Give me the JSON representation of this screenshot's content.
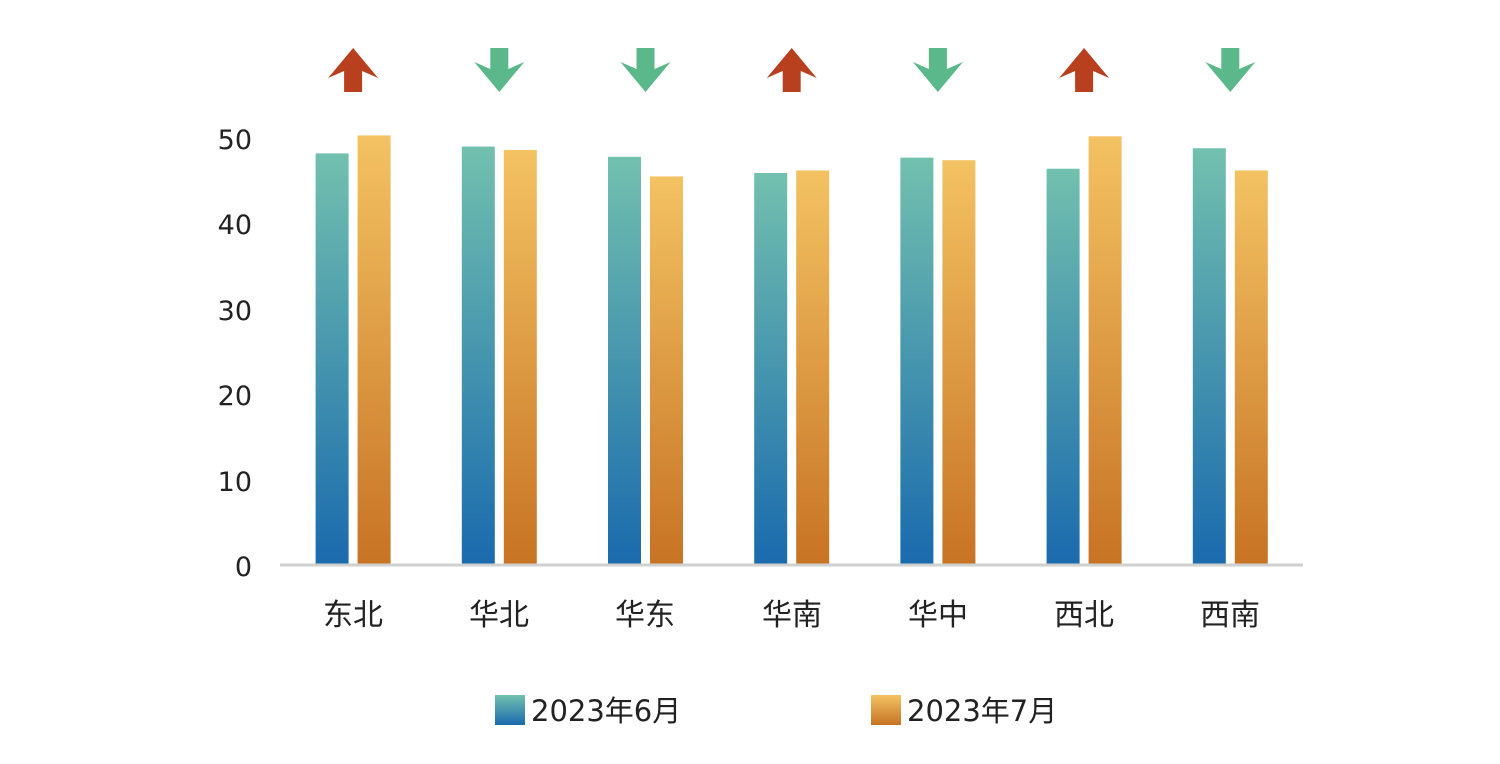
{
  "chart_data": {
    "type": "bar",
    "title": "",
    "xlabel": "",
    "ylabel": "",
    "ylim": [
      0,
      50
    ],
    "yticks": [
      "0",
      "10",
      "20",
      "30",
      "40",
      "50"
    ],
    "categories": [
      "东北",
      "华北",
      "华东",
      "华南",
      "华中",
      "西北",
      "西南"
    ],
    "series": [
      {
        "name": "2023年6月",
        "values": [
          48.2,
          49.0,
          47.8,
          45.9,
          47.7,
          46.4,
          48.8
        ],
        "color_top": "#72c0ae",
        "color_bottom": "#1a6aae"
      },
      {
        "name": "2023年7月",
        "values": [
          50.3,
          48.6,
          45.5,
          46.2,
          47.4,
          50.2,
          46.2
        ],
        "color_top": "#f3c262",
        "color_bottom": "#c77324"
      }
    ],
    "trend_arrows": [
      "up",
      "down",
      "down",
      "up",
      "down",
      "up",
      "down"
    ],
    "arrow_colors": {
      "up": "#b8401f",
      "down": "#5ab88a"
    },
    "axis_color": "#d0d0d0",
    "grid": false,
    "legend_position": "bottom"
  }
}
